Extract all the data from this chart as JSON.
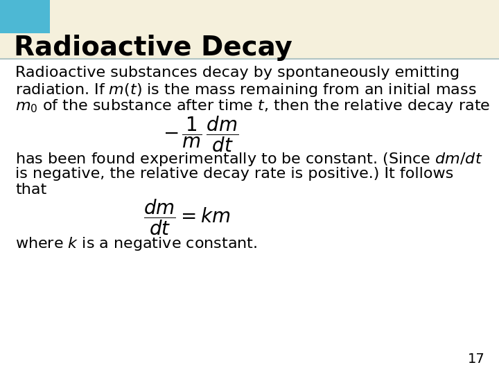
{
  "title": "Radioactive Decay",
  "title_fontsize": 28,
  "title_bg_color": "#F5F0DC",
  "title_bar_color": "#4DB8D4",
  "body_bg_color": "#FFFFFF",
  "text_color": "#000000",
  "slide_border_color": "#B0C4C4",
  "page_number": "17",
  "body_fontsize": 16,
  "formula_fontsize": 20,
  "line1": "Radioactive substances decay by spontaneously emitting",
  "line2": "radiation. If $m(t)$ is the mass remaining from an initial mass",
  "line3": "$m_0$ of the substance after time $t$, then the relative decay rate",
  "line4": "has been found experimentally to be constant. (Since $dm/dt$",
  "line5": "is negative, the relative decay rate is positive.) It follows",
  "line6": "that",
  "line7": "where $k$ is a negative constant."
}
